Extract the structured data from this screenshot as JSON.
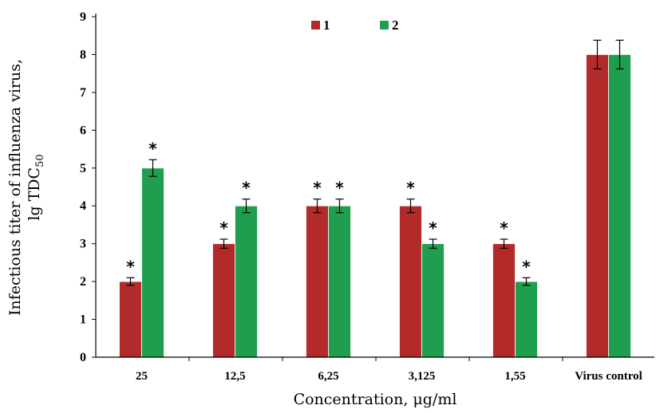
{
  "chart_data": {
    "type": "bar",
    "title": "",
    "xlabel": "Concentration, μg/ml",
    "ylabel_line1": "Infectious titer of influenza virus,",
    "ylabel_line2_main": "lg TDC",
    "ylabel_line2_sub": "50",
    "ylim": [
      0,
      9
    ],
    "yticks": [
      "0",
      "1",
      "2",
      "3",
      "4",
      "5",
      "6",
      "7",
      "8",
      "9"
    ],
    "categories": [
      "25",
      "12,5",
      "6,25",
      "3,125",
      "1,55",
      "Virus control"
    ],
    "series": [
      {
        "name": "1",
        "color": "#b22a2a",
        "values": [
          2,
          3,
          4,
          4,
          3,
          8
        ],
        "errors": [
          0.1,
          0.12,
          0.18,
          0.18,
          0.12,
          0.38
        ]
      },
      {
        "name": "2",
        "color": "#1f9e4f",
        "values": [
          5,
          4,
          4,
          3,
          2,
          8
        ],
        "errors": [
          0.22,
          0.18,
          0.18,
          0.12,
          0.1,
          0.38
        ]
      }
    ],
    "significance_mark": "*",
    "significance": [
      [
        true,
        true,
        true,
        true,
        true,
        false
      ],
      [
        true,
        true,
        true,
        true,
        true,
        false
      ]
    ],
    "legend_position": "top-center",
    "grid": false
  }
}
